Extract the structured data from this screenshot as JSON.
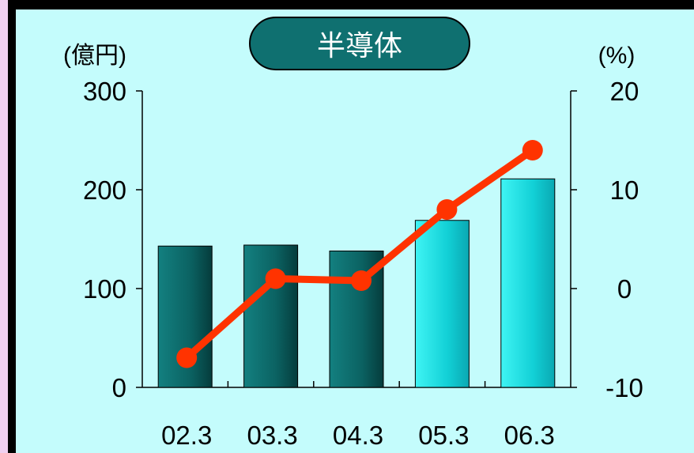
{
  "chart_data": {
    "type": "bar",
    "title": "半導体",
    "categories": [
      "02.3",
      "03.3",
      "04.3",
      "05.3",
      "06.3"
    ],
    "bar_series": {
      "axis": "left",
      "values": [
        143,
        144,
        138,
        169,
        211
      ],
      "colors": [
        "#0b6e6e",
        "#0b6e6e",
        "#0b6e6e",
        "#19e4e4",
        "#19e4e4"
      ]
    },
    "line_series": {
      "axis": "right",
      "values": [
        -7,
        1,
        0.8,
        8,
        14
      ],
      "color": "#ff3300"
    },
    "y_left": {
      "label": "(億円)",
      "ylim": [
        0,
        300
      ],
      "ticks": [
        "0",
        "100",
        "200",
        "300"
      ],
      "tick_values": [
        0,
        100,
        200,
        300
      ]
    },
    "y_right": {
      "label": "(%)",
      "ylim": [
        -10,
        20
      ],
      "ticks": [
        "-10",
        "0",
        "10",
        "20"
      ],
      "tick_values": [
        -10,
        0,
        10,
        20
      ]
    },
    "grid": false
  },
  "colors": {
    "background": "#c4fcfc",
    "frame": "#000000",
    "title_box": "#0f7070",
    "title_text": "#ffffff"
  }
}
